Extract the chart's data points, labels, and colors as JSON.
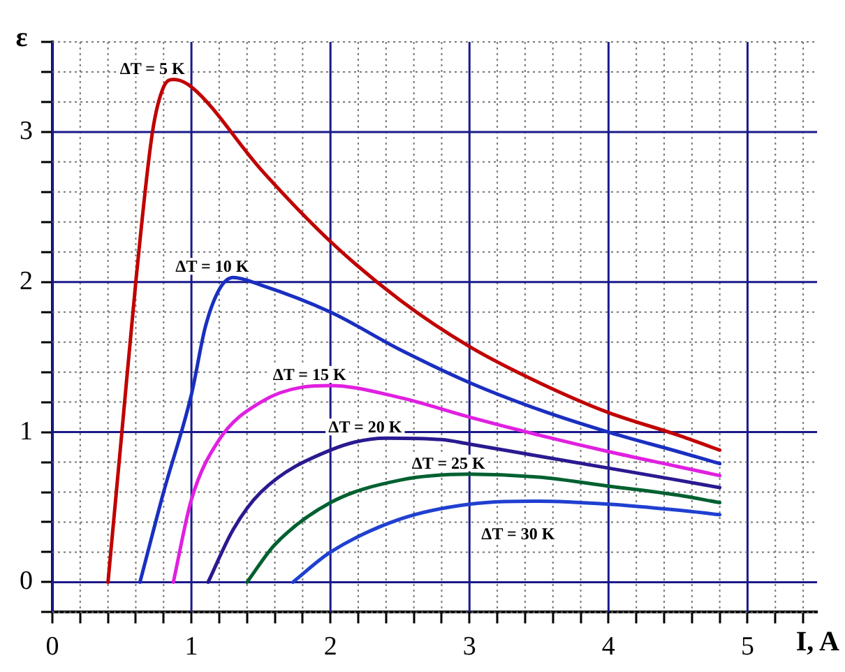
{
  "chart_data": {
    "type": "line",
    "xlabel": "I, A",
    "ylabel": "ε",
    "xlim": [
      0,
      5.5
    ],
    "ylim": [
      -0.2,
      3.6
    ],
    "xticks": [
      0,
      {
        "value": 0.2,
        "label": null
      },
      {
        "value": 0.4,
        "label": null
      },
      {
        "value": 0.6,
        "label": null
      },
      {
        "value": 0.8,
        "label": null
      },
      1,
      {
        "value": 1.2,
        "label": null
      },
      {
        "value": 1.4,
        "label": null
      },
      {
        "value": 1.6,
        "label": null
      },
      {
        "value": 1.8,
        "label": null
      },
      2,
      {
        "value": 2.2,
        "label": null
      },
      {
        "value": 2.4,
        "label": null
      },
      {
        "value": 2.6,
        "label": null
      },
      {
        "value": 2.8,
        "label": null
      },
      3,
      {
        "value": 3.2,
        "label": null
      },
      {
        "value": 3.4,
        "label": null
      },
      {
        "value": 3.6,
        "label": null
      },
      {
        "value": 3.8,
        "label": null
      },
      4,
      {
        "value": 4.2,
        "label": null
      },
      {
        "value": 4.4,
        "label": null
      },
      {
        "value": 4.6,
        "label": null
      },
      {
        "value": 4.8,
        "label": null
      },
      5,
      {
        "value": 5.2,
        "label": null
      },
      {
        "value": 5.4,
        "label": null
      }
    ],
    "yticks": [
      {
        "value": -0.2,
        "label": null
      },
      0,
      {
        "value": 0.2,
        "label": null
      },
      {
        "value": 0.4,
        "label": null
      },
      {
        "value": 0.6,
        "label": null
      },
      {
        "value": 0.8,
        "label": null
      },
      1,
      {
        "value": 1.2,
        "label": null
      },
      {
        "value": 1.4,
        "label": null
      },
      {
        "value": 1.6,
        "label": null
      },
      {
        "value": 1.8,
        "label": null
      },
      2,
      {
        "value": 2.2,
        "label": null
      },
      {
        "value": 2.4,
        "label": null
      },
      {
        "value": 2.6,
        "label": null
      },
      {
        "value": 2.8,
        "label": null
      },
      3,
      {
        "value": 3.2,
        "label": null
      },
      {
        "value": 3.4,
        "label": null
      },
      {
        "value": 3.6,
        "label": null
      }
    ],
    "grid": true,
    "legend": false,
    "marker": "none",
    "line_style": "solid",
    "series": [
      {
        "name": "ΔT = 5 K",
        "color": "#c00000",
        "x": [
          0.4,
          0.5,
          0.6,
          0.72,
          0.8,
          0.87,
          1.0,
          1.5,
          2,
          2.5,
          3,
          3.5,
          4,
          4.5,
          4.8
        ],
        "values": [
          0,
          1,
          2,
          3,
          3.3,
          3.35,
          3.3,
          2.75,
          2.27,
          1.88,
          1.57,
          1.33,
          1.13,
          0.98,
          0.88
        ]
      },
      {
        "name": "ΔT = 10 K",
        "color": "#1a2fc0",
        "x": [
          0.63,
          0.8,
          1.0,
          1.1,
          1.2,
          1.3,
          1.5,
          2,
          2.5,
          3,
          3.5,
          4,
          4.5,
          4.8
        ],
        "values": [
          0,
          0.6,
          1.25,
          1.7,
          1.95,
          2.03,
          1.98,
          1.8,
          1.55,
          1.33,
          1.15,
          1.0,
          0.87,
          0.79
        ]
      },
      {
        "name": "ΔT = 15 K",
        "color": "#e020e0",
        "x": [
          0.87,
          1.0,
          1.2,
          1.5,
          1.8,
          2,
          2.5,
          3,
          3.5,
          4,
          4.5,
          4.8
        ],
        "values": [
          0,
          0.55,
          0.95,
          1.2,
          1.3,
          1.31,
          1.23,
          1.1,
          0.98,
          0.87,
          0.77,
          0.71
        ]
      },
      {
        "name": "ΔT = 20 K",
        "color": "#2a1a90",
        "x": [
          1.12,
          1.3,
          1.5,
          2,
          2.4,
          2.8,
          3,
          3.5,
          4,
          4.5,
          4.8
        ],
        "values": [
          0,
          0.35,
          0.6,
          0.88,
          0.96,
          0.95,
          0.92,
          0.84,
          0.76,
          0.68,
          0.63
        ]
      },
      {
        "name": "ΔT = 25 K",
        "color": "#006030",
        "x": [
          1.4,
          1.6,
          2,
          2.5,
          3,
          3.5,
          4,
          4.5,
          4.8
        ],
        "values": [
          0,
          0.25,
          0.53,
          0.68,
          0.72,
          0.7,
          0.64,
          0.58,
          0.53
        ]
      },
      {
        "name": "ΔT = 30 K",
        "color": "#2040d0",
        "x": [
          1.73,
          2,
          2.5,
          3,
          3.5,
          4,
          4.5,
          4.8
        ],
        "values": [
          0,
          0.2,
          0.42,
          0.52,
          0.54,
          0.52,
          0.48,
          0.45
        ]
      }
    ]
  }
}
